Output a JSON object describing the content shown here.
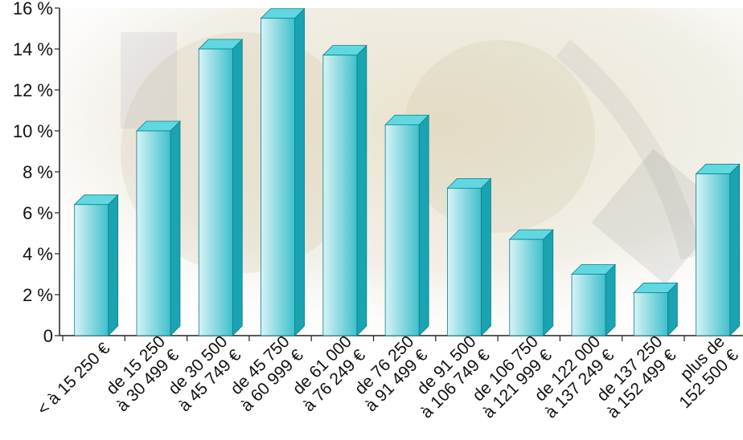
{
  "chart_data": {
    "type": "bar",
    "categories": [
      [
        "< à 15 250 €"
      ],
      [
        "de 15 250",
        "à 30 499 €"
      ],
      [
        "de 30 500",
        "à 45 749 €"
      ],
      [
        "de 45 750",
        "à 60 999 €"
      ],
      [
        "de 61 000",
        "à 76 249 €"
      ],
      [
        "de 76 250",
        "à 91 499 €"
      ],
      [
        "de 91 500",
        "à 106 749 €"
      ],
      [
        "de 106 750",
        "à 121 999 €"
      ],
      [
        "de 122 000",
        "à 137 249 €"
      ],
      [
        "de 137 250",
        "à 152 499 €"
      ],
      [
        "plus de",
        "152 500 €"
      ]
    ],
    "values": [
      6.4,
      10.0,
      14.0,
      15.5,
      13.7,
      10.3,
      7.2,
      4.7,
      3.0,
      2.1,
      7.9
    ],
    "title": "",
    "xlabel": "",
    "ylabel": "",
    "ylim": [
      0,
      16
    ],
    "yticks": [
      "0",
      "2 %",
      "4 %",
      "6 %",
      "8 %",
      "10 %",
      "12 %",
      "14 %",
      "16 %"
    ],
    "grid": false,
    "bar_style": "3d",
    "colors": {
      "bar_front_light": "#d6f3f6",
      "bar_front_dark": "#3fc0cc",
      "bar_top": "#5fd8e2",
      "bar_side": "#1aa3b1",
      "axis": "#222222",
      "background_tint": "#c9b98d"
    }
  }
}
